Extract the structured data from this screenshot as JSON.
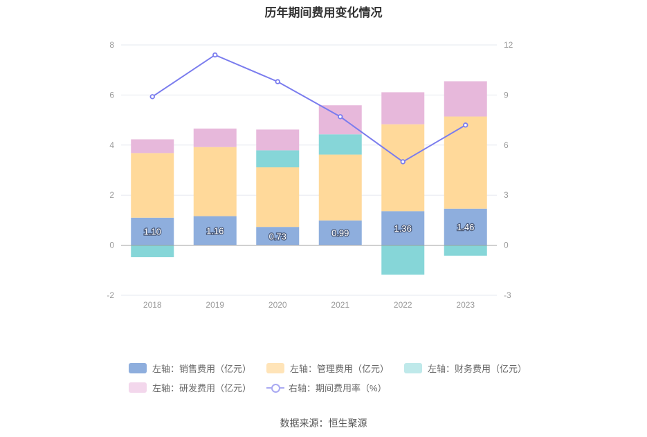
{
  "title": "历年期间费用变化情况",
  "source": "数据来源：恒生聚源",
  "chart_data": {
    "type": "bar",
    "stacked": true,
    "categories": [
      "2018",
      "2019",
      "2020",
      "2021",
      "2022",
      "2023"
    ],
    "left_axis": {
      "ylim": [
        -2,
        8
      ],
      "ticks": [
        "-2",
        "0",
        "2",
        "4",
        "6",
        "8"
      ]
    },
    "right_axis": {
      "ylim": [
        -3,
        12
      ],
      "ticks": [
        "-3",
        "0",
        "3",
        "6",
        "9",
        "12"
      ]
    },
    "grid": true,
    "legend_position": "bottom",
    "series": [
      {
        "name": "左轴：销售费用（亿元）",
        "axis": "left",
        "type": "bar",
        "color": "#8eaedd",
        "values": [
          1.1,
          1.16,
          0.73,
          0.99,
          1.36,
          1.46
        ],
        "labels": [
          "1.10",
          "1.16",
          "0.73",
          "0.99",
          "1.36",
          "1.46"
        ]
      },
      {
        "name": "左轴：管理费用（亿元）",
        "axis": "left",
        "type": "bar",
        "color": "#ffd99a",
        "values": [
          2.58,
          2.76,
          2.38,
          2.63,
          3.47,
          3.68
        ]
      },
      {
        "name": "左轴：财务费用（亿元）",
        "axis": "left",
        "type": "bar",
        "color": "#86d6d8",
        "values": [
          -0.48,
          0.0,
          0.68,
          0.81,
          -1.18,
          -0.42
        ]
      },
      {
        "name": "左轴：研发费用（亿元）",
        "axis": "left",
        "type": "bar",
        "color": "#e7b8db",
        "values": [
          0.55,
          0.74,
          0.83,
          1.16,
          1.28,
          1.41
        ]
      },
      {
        "name": "右轴：期间费用率（%）",
        "axis": "right",
        "type": "line",
        "color": "#7a7cee",
        "values": [
          8.9,
          11.4,
          9.8,
          7.7,
          5.0,
          7.2
        ]
      }
    ]
  },
  "legend": {
    "row1": [
      {
        "label": "左轴：销售费用（亿元）",
        "color": "#8eaedd"
      },
      {
        "label": "左轴：管理费用（亿元）",
        "color": "#ffe4b8"
      },
      {
        "label": "左轴：财务费用（亿元）",
        "color": "#bfe9ea"
      }
    ],
    "row2": [
      {
        "label": "左轴：研发费用（亿元）",
        "color": "#f3d7ec"
      },
      {
        "label": "右轴：期间费用率（%）",
        "color": "#a9a9f2"
      }
    ]
  }
}
